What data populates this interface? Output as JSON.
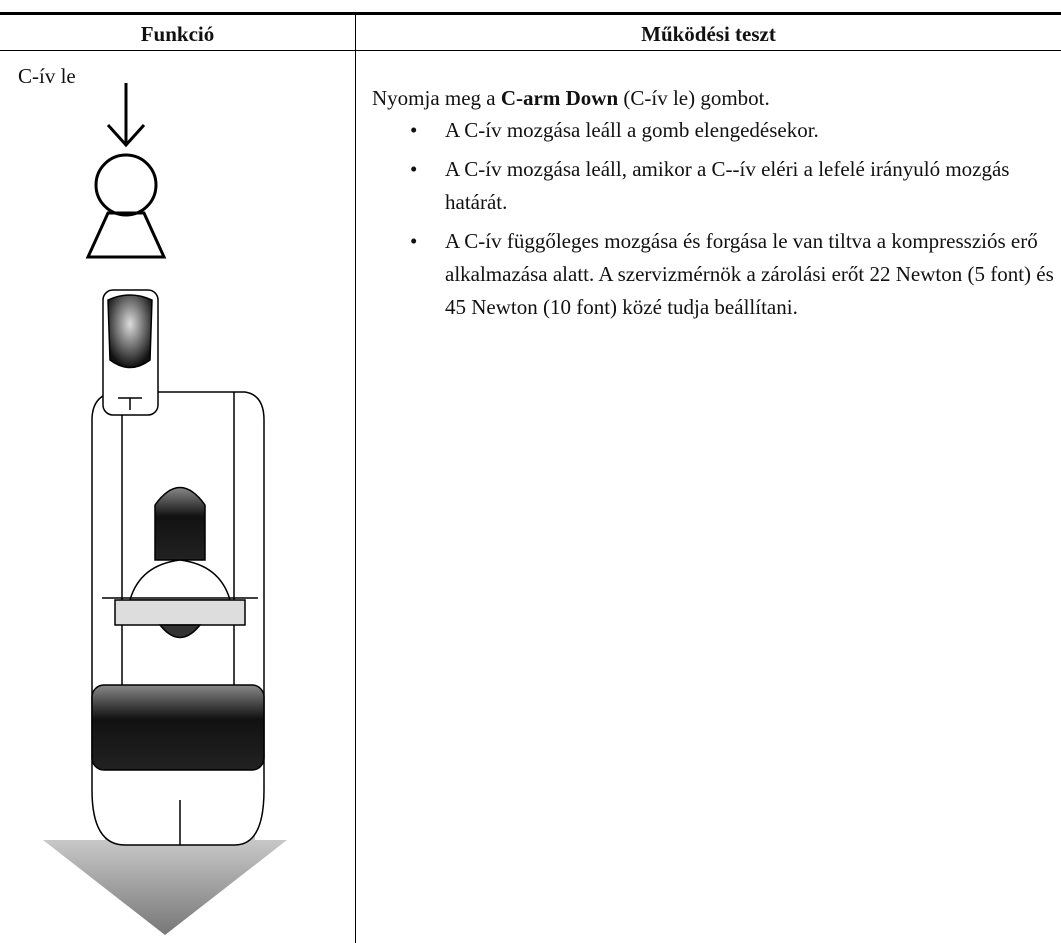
{
  "table": {
    "header": [
      "Funkció",
      "Működési teszt"
    ],
    "rows": [
      {
        "function": "C-ív le",
        "intro_before": "Nyomja meg a ",
        "intro_bold": "C-arm Down",
        "intro_after": " (C-ív le) gombot.",
        "bullets": [
          "A C-ív mozgása leáll a gomb elengedésekor.",
          "A C-ív mozgása leáll, amikor a C--ív eléri a lefelé irányuló mozgás határát.",
          "A C-ív függőleges mozgása és forgása le van tiltva a kompressziós erő alkalmazása alatt. A szervizmérnök a zárolási erőt 22 Newton (5 font) és 45 Newton (10 font) közé tudja beállítani."
        ]
      }
    ]
  }
}
